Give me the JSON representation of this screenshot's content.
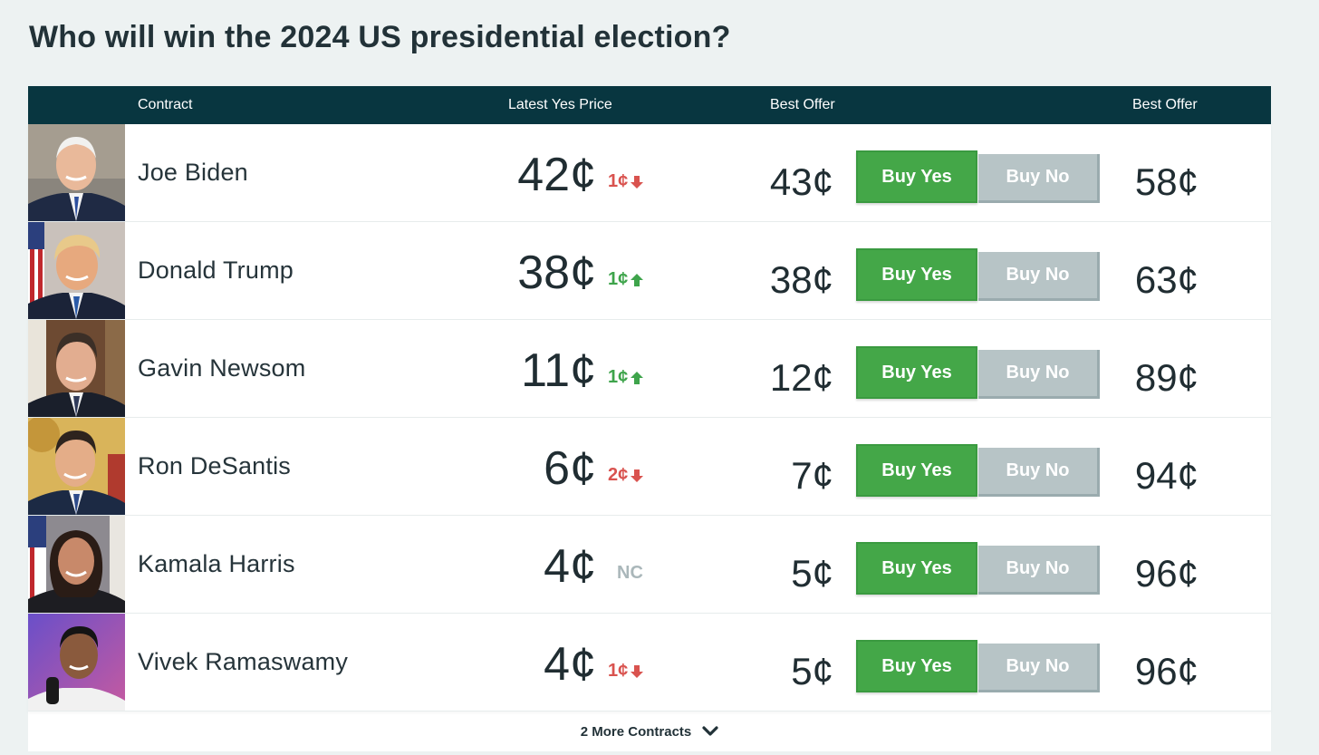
{
  "page": {
    "title": "Who will win the 2024 US presidential election?"
  },
  "table": {
    "headers": {
      "contract": "Contract",
      "latest_yes_price": "Latest Yes Price",
      "best_offer_yes": "Best Offer",
      "best_offer_no": "Best Offer"
    },
    "buttons": {
      "buy_yes": "Buy Yes",
      "buy_no": "Buy No"
    },
    "rows": [
      {
        "name": "Joe Biden",
        "latest": "42¢",
        "change": "1¢",
        "direction": "down",
        "best_offer_yes": "43¢",
        "best_offer_no": "58¢"
      },
      {
        "name": "Donald Trump",
        "latest": "38¢",
        "change": "1¢",
        "direction": "up",
        "best_offer_yes": "38¢",
        "best_offer_no": "63¢"
      },
      {
        "name": "Gavin Newsom",
        "latest": "11¢",
        "change": "1¢",
        "direction": "up",
        "best_offer_yes": "12¢",
        "best_offer_no": "89¢"
      },
      {
        "name": "Ron DeSantis",
        "latest": "6¢",
        "change": "2¢",
        "direction": "down",
        "best_offer_yes": "7¢",
        "best_offer_no": "94¢"
      },
      {
        "name": "Kamala Harris",
        "latest": "4¢",
        "change": "NC",
        "direction": "none",
        "best_offer_yes": "5¢",
        "best_offer_no": "96¢"
      },
      {
        "name": "Vivek Ramaswamy",
        "latest": "4¢",
        "change": "1¢",
        "direction": "down",
        "best_offer_yes": "5¢",
        "best_offer_no": "96¢"
      }
    ],
    "footer": {
      "more_label": "2 More Contracts",
      "icon": "chevron-down-icon"
    }
  },
  "colors": {
    "header_bg": "#083640",
    "buy_yes": "#44a748",
    "buy_no": "#b7c4c6",
    "down": "#d9534f",
    "up": "#3ea44b",
    "nc": "#aab7ba",
    "page_bg": "#edf2f2"
  }
}
